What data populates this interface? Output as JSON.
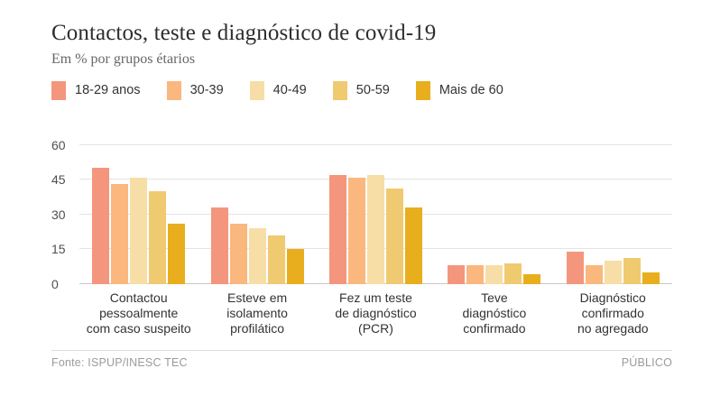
{
  "header": {
    "title": "Contactos, teste e diagnóstico de covid-19",
    "subtitle": "Em % por grupos étarios"
  },
  "footer": {
    "source": "Fonte: ISPUP/INESC TEC",
    "brand": "PÚBLICO"
  },
  "chart_data": {
    "type": "bar",
    "title": "Contactos, teste e diagnóstico de covid-19",
    "subtitle": "Em % por grupos étarios",
    "unit": "%",
    "categories": [
      "Contactou pessoalmente com caso suspeito",
      "Esteve em isolamento profilático",
      "Fez um teste de diagnóstico (PCR)",
      "Teve diagnóstico confirmado",
      "Diagnóstico confirmado no agregado"
    ],
    "category_lines": [
      [
        "Contactou",
        "pessoalmente",
        "com caso suspeito"
      ],
      [
        "Esteve em",
        "isolamento",
        "profilático"
      ],
      [
        "Fez um teste",
        "de diagnóstico",
        "(PCR)"
      ],
      [
        "Teve",
        "diagnóstico",
        "confirmado"
      ],
      [
        "Diagnóstico",
        "confirmado",
        "no agregado"
      ]
    ],
    "series": [
      {
        "name": "18-29 anos",
        "color": "#f4967d",
        "values": [
          50,
          33,
          47,
          8,
          14
        ]
      },
      {
        "name": "30-39",
        "color": "#fab77e",
        "values": [
          43,
          26,
          46,
          8,
          8
        ]
      },
      {
        "name": "40-49",
        "color": "#f6dea6",
        "values": [
          46,
          24,
          47,
          8,
          10
        ]
      },
      {
        "name": "50-59",
        "color": "#f0ca70",
        "values": [
          40,
          21,
          41,
          9,
          11
        ]
      },
      {
        "name": "Mais de 60",
        "color": "#e8ae1d",
        "values": [
          26,
          15,
          33,
          4,
          5
        ]
      }
    ],
    "ylim": [
      0,
      60
    ],
    "yticks": [
      0,
      15,
      30,
      45,
      60
    ],
    "grid": true,
    "legend_position": "top",
    "colors": {
      "grid": "#e4e4e4",
      "baseline": "#c9c9c9",
      "text": "#333333",
      "muted": "#9b9b9b"
    }
  }
}
